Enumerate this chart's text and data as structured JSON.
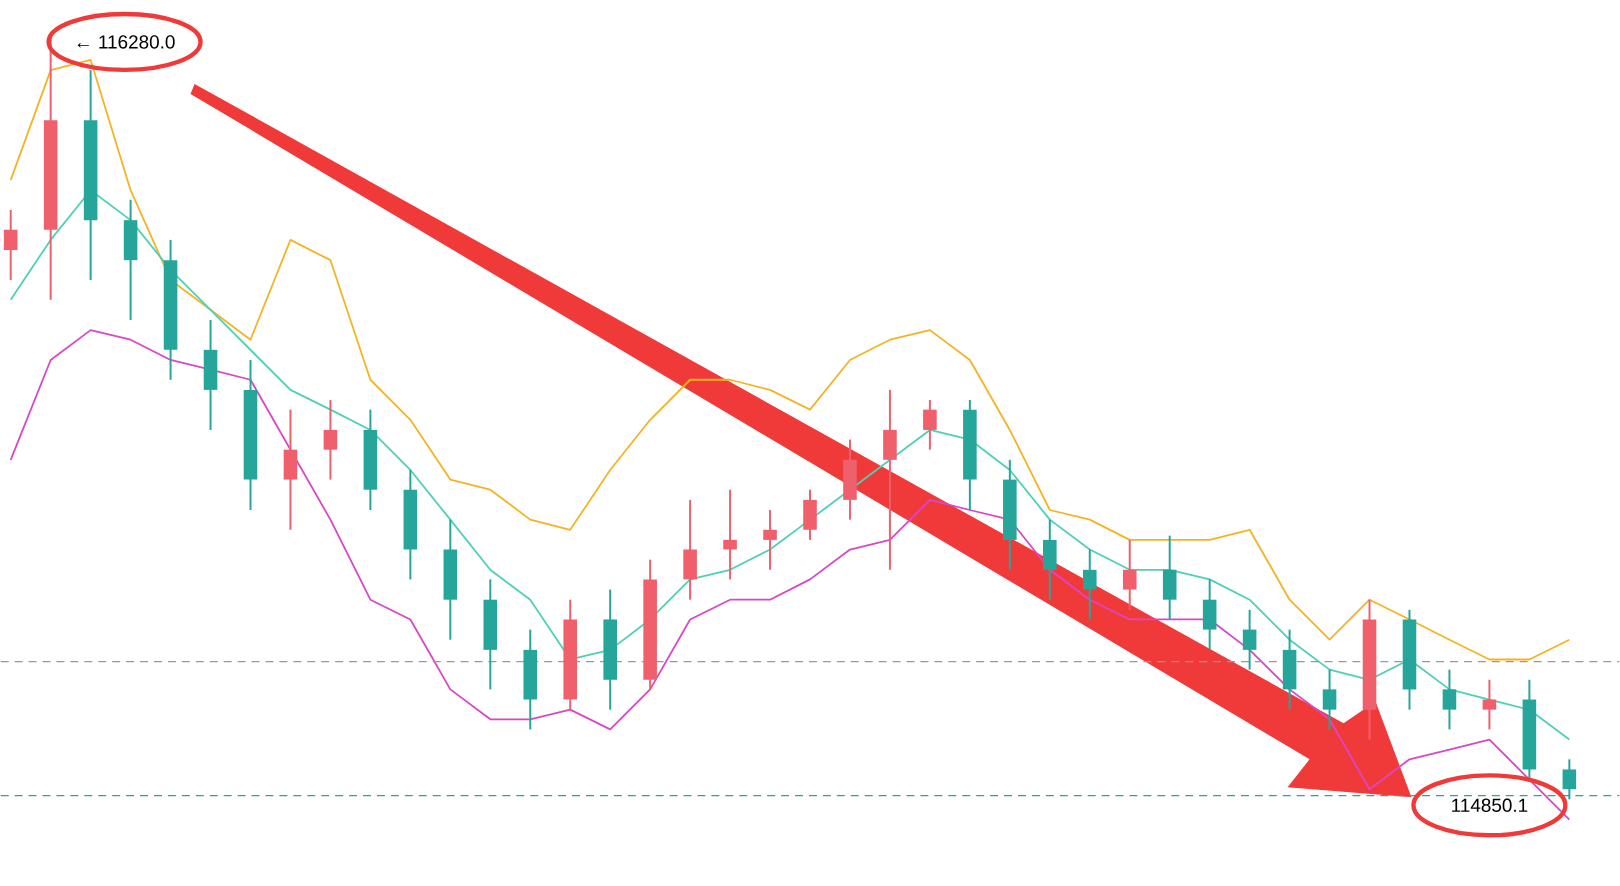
{
  "chart_data": {
    "type": "candlestick",
    "categories": [
      null,
      null,
      null,
      null,
      null,
      null,
      null,
      null,
      null,
      null,
      null,
      null,
      null,
      null,
      null,
      null,
      null,
      null,
      null,
      null,
      null,
      null,
      null,
      null,
      null,
      null,
      null,
      null,
      null,
      null,
      null,
      null,
      null,
      null,
      null,
      null,
      null,
      null,
      null,
      null
    ],
    "ohlc": [
      [
        115879,
        115954,
        115823,
        115917
      ],
      [
        115917,
        116280.0,
        115786,
        116122
      ],
      [
        116122,
        116216,
        115823,
        115935
      ],
      [
        115935,
        115973,
        115748,
        115860
      ],
      [
        115860,
        115898,
        115636,
        115692
      ],
      [
        115692,
        115748,
        115542,
        115617
      ],
      [
        115617,
        115673,
        115392,
        115449
      ],
      [
        115449,
        115580,
        115355,
        115505
      ],
      [
        115505,
        115598,
        115449,
        115542
      ],
      [
        115542,
        115580,
        115392,
        115430
      ],
      [
        115430,
        115467,
        115262,
        115318
      ],
      [
        115318,
        115374,
        115149,
        115224
      ],
      [
        115224,
        115262,
        115056,
        115130
      ],
      [
        115130,
        115168,
        114981,
        115037
      ],
      [
        115037,
        115224,
        115018,
        115187
      ],
      [
        115187,
        115243,
        115018,
        115074
      ],
      [
        115074,
        115299,
        115056,
        115262
      ],
      [
        115262,
        115411,
        115224,
        115318
      ],
      [
        115318,
        115430,
        115262,
        115336
      ],
      [
        115336,
        115392,
        115280,
        115355
      ],
      [
        115355,
        115430,
        115336,
        115411
      ],
      [
        115411,
        115524,
        115374,
        115486
      ],
      [
        115486,
        115617,
        115280,
        115542
      ],
      [
        115542,
        115598,
        115505,
        115580
      ],
      [
        115580,
        115598,
        115392,
        115449
      ],
      [
        115449,
        115486,
        115280,
        115336
      ],
      [
        115336,
        115374,
        115224,
        115280
      ],
      [
        115280,
        115318,
        115187,
        115243
      ],
      [
        115243,
        115336,
        115205,
        115280
      ],
      [
        115280,
        115344,
        115187,
        115224
      ],
      [
        115224,
        115262,
        115130,
        115168
      ],
      [
        115168,
        115205,
        115093,
        115130
      ],
      [
        115130,
        115168,
        115018,
        115056
      ],
      [
        115056,
        115093,
        114981,
        115018
      ],
      [
        115018,
        115224,
        114962,
        115187
      ],
      [
        115187,
        115205,
        115018,
        115056
      ],
      [
        115056,
        115093,
        114981,
        115018
      ],
      [
        115018,
        115074,
        114981,
        115037
      ],
      [
        115037,
        115074,
        114887,
        114906
      ],
      [
        114906,
        114925,
        114850.1,
        114869
      ]
    ],
    "colors": [
      "#ef5f6c",
      "#ef5f6c",
      "#26a69a",
      "#26a69a",
      "#26a69a",
      "#26a69a",
      "#26a69a",
      "#ef5f6c",
      "#ef5f6c",
      "#26a69a",
      "#26a69a",
      "#26a69a",
      "#26a69a",
      "#26a69a",
      "#ef5f6c",
      "#26a69a",
      "#ef5f6c",
      "#ef5f6c",
      "#ef5f6c",
      "#ef5f6c",
      "#ef5f6c",
      "#ef5f6c",
      "#ef5f6c",
      "#ef5f6c",
      "#26a69a",
      "#26a69a",
      "#26a69a",
      "#26a69a",
      "#ef5f6c",
      "#26a69a",
      "#26a69a",
      "#26a69a",
      "#26a69a",
      "#26a69a",
      "#ef5f6c",
      "#26a69a",
      "#26a69a",
      "#ef5f6c",
      "#26a69a",
      "#26a69a"
    ],
    "series": [
      {
        "type": "line",
        "color": "#f5b324",
        "values": [
          116010,
          116216,
          116235,
          115991,
          115823,
          115767,
          115711,
          115898,
          115860,
          115636,
          115561,
          115449,
          115430,
          115374,
          115355,
          115467,
          115561,
          115636,
          115636,
          115617,
          115580,
          115673,
          115711,
          115729,
          115673,
          115542,
          115392,
          115374,
          115336,
          115336,
          115336,
          115355,
          115224,
          115149,
          115224,
          115187,
          115149,
          115112,
          115112,
          115149
        ]
      },
      {
        "type": "line",
        "color": "#4dd0b5",
        "values": [
          115786,
          115898,
          115991,
          115935,
          115842,
          115767,
          115692,
          115617,
          115580,
          115542,
          115467,
          115374,
          115280,
          115224,
          115112,
          115130,
          115187,
          115262,
          115280,
          115318,
          115374,
          115430,
          115486,
          115542,
          115524,
          115467,
          115374,
          115318,
          115280,
          115280,
          115262,
          115224,
          115149,
          115093,
          115074,
          115112,
          115056,
          115037,
          115018,
          114962
        ]
      },
      {
        "type": "line",
        "color": "#d946c6",
        "values": [
          115486,
          115673,
          115729,
          115711,
          115673,
          115655,
          115636,
          115505,
          115374,
          115224,
          115187,
          115056,
          115000,
          115000,
          115018,
          114981,
          115056,
          115187,
          115224,
          115224,
          115262,
          115318,
          115336,
          115411,
          115392,
          115374,
          115280,
          115224,
          115187,
          115187,
          115187,
          115130,
          115056,
          115000,
          114869,
          114925,
          114943,
          114962,
          114887,
          114812
        ]
      }
    ],
    "ref_lines": [
      {
        "axis": "y",
        "value": 115108,
        "color": "#999999",
        "line_style": "dashed"
      },
      {
        "axis": "y",
        "value": 114857,
        "color": "#26a69a",
        "line_style": "dashed"
      }
    ],
    "annotations": [
      "← 116280.0",
      "114850.1"
    ]
  }
}
